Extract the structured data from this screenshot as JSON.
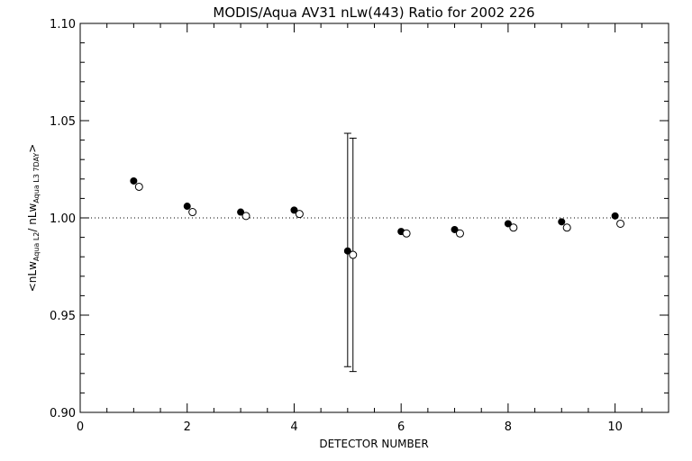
{
  "chart_data": {
    "type": "scatter",
    "title": "MODIS/Aqua AV31 nLw(443) Ratio for 2002 226",
    "xlabel": "DETECTOR NUMBER",
    "ylabel_parts": {
      "open": "<nLw",
      "sub1": "Aqua L2",
      "mid": "/ nLw",
      "sub2": "Aqua L3 7DAY",
      "close": ">"
    },
    "xlim": [
      0,
      11
    ],
    "ylim": [
      0.9,
      1.1
    ],
    "xticks": [
      0,
      2,
      4,
      6,
      8,
      10
    ],
    "xtick_labels": [
      "0",
      "2",
      "4",
      "6",
      "8",
      "10"
    ],
    "yticks": [
      0.9,
      0.95,
      1.0,
      1.05,
      1.1
    ],
    "ytick_labels": [
      "0.90",
      "0.95",
      "1.00",
      "1.05",
      "1.10"
    ],
    "reference_line": {
      "y": 1.0,
      "style": "dotted"
    },
    "series": [
      {
        "marker": "filled-circle",
        "x": [
          1,
          2,
          3,
          4,
          5,
          6,
          7,
          8,
          9,
          10
        ],
        "y": [
          1.019,
          1.006,
          1.003,
          1.004,
          0.983,
          0.993,
          0.994,
          0.997,
          0.998,
          1.001
        ]
      },
      {
        "marker": "open-circle",
        "x": [
          1.1,
          2.1,
          3.1,
          4.1,
          5.1,
          6.1,
          7.1,
          8.1,
          9.1,
          10.1
        ],
        "y": [
          1.016,
          1.003,
          1.001,
          1.002,
          0.981,
          0.992,
          0.992,
          0.995,
          0.995,
          0.997
        ]
      }
    ],
    "error_bars": [
      {
        "x": 5.0,
        "low": 0.9235,
        "high": 1.0435
      },
      {
        "x": 5.1,
        "low": 0.921,
        "high": 1.041
      }
    ],
    "grid": false
  }
}
